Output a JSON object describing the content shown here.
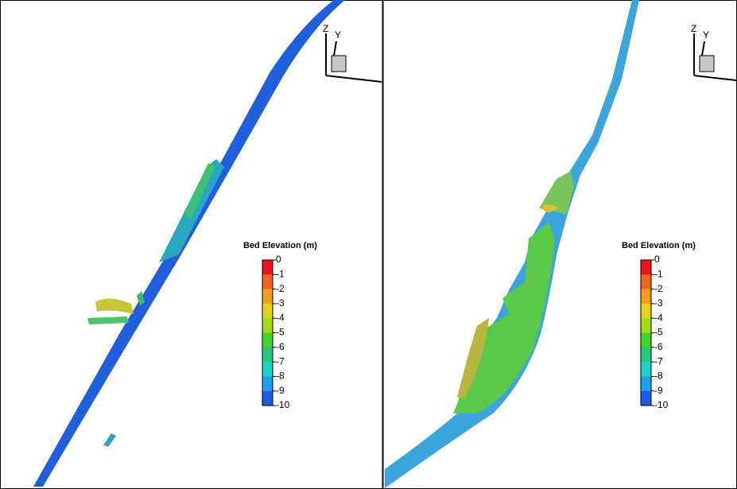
{
  "panels": [
    {
      "triad": {
        "z": "Z",
        "y": "Y"
      },
      "legend": {
        "title": "Bed Elevation (m)",
        "ticks": [
          0,
          -1,
          -2,
          -3,
          -4,
          -5,
          -6,
          -7,
          -8,
          -9,
          -10
        ]
      }
    },
    {
      "triad": {
        "z": "Z",
        "y": "Y"
      },
      "legend": {
        "title": "Bed Elevation (m)",
        "ticks": [
          0,
          -1,
          -2,
          -3,
          -4,
          -5,
          -6,
          -7,
          -8,
          -9,
          -10
        ]
      }
    }
  ]
}
